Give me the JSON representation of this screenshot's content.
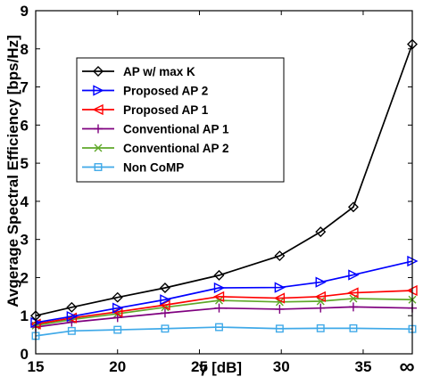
{
  "chart_data": {
    "type": "line",
    "xlabel": "γ [dB]",
    "ylabel": "Avgerage Spectral Efficiency [bps/Hz]",
    "xlim": [
      15,
      38
    ],
    "ylim": [
      0,
      9
    ],
    "xticks": [
      15,
      20,
      25,
      30,
      35
    ],
    "xtick_labels": [
      "15",
      "20",
      "25",
      "30",
      "35"
    ],
    "extra_xtick_label": "∞",
    "yticks": [
      0,
      1,
      2,
      3,
      4,
      5,
      6,
      7,
      8,
      9
    ],
    "ytick_labels": [
      "0",
      "1",
      "2",
      "3",
      "4",
      "5",
      "6",
      "7",
      "8",
      "9"
    ],
    "grid": false,
    "legend_position": "upper-left",
    "x": [
      15,
      17.2,
      20,
      22.9,
      26.2,
      29.9,
      32.4,
      34.4,
      38
    ],
    "series": [
      {
        "name": "AP w/ max K",
        "color": "#000000",
        "marker": "diamond",
        "values": [
          1.0,
          1.22,
          1.48,
          1.73,
          2.06,
          2.57,
          3.2,
          3.85,
          8.12
        ]
      },
      {
        "name": "Proposed AP 2",
        "color": "#0000ff",
        "marker": "triangle-right",
        "values": [
          0.82,
          0.98,
          1.2,
          1.42,
          1.73,
          1.74,
          1.88,
          2.07,
          2.43
        ]
      },
      {
        "name": "Proposed AP 1",
        "color": "#ff0000",
        "marker": "triangle-left",
        "values": [
          0.78,
          0.94,
          1.1,
          1.28,
          1.5,
          1.46,
          1.5,
          1.6,
          1.66
        ]
      },
      {
        "name": "Conventional AP 1",
        "color": "#7f007f",
        "marker": "plus",
        "values": [
          0.7,
          0.83,
          0.95,
          1.07,
          1.2,
          1.17,
          1.2,
          1.23,
          1.2
        ]
      },
      {
        "name": "Conventional AP 2",
        "color": "#5fa829",
        "marker": "x",
        "values": [
          0.74,
          0.9,
          1.05,
          1.22,
          1.4,
          1.36,
          1.38,
          1.45,
          1.42
        ]
      },
      {
        "name": "Non CoMP",
        "color": "#3fa9e8",
        "marker": "square",
        "values": [
          0.47,
          0.6,
          0.63,
          0.66,
          0.7,
          0.66,
          0.67,
          0.67,
          0.65
        ]
      }
    ]
  }
}
